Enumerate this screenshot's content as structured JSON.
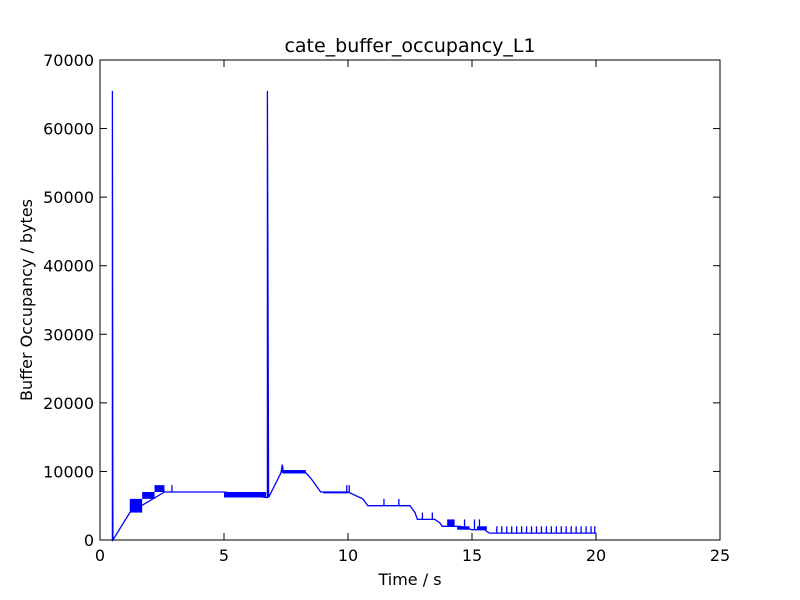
{
  "chart_data": {
    "type": "line",
    "title": "cate_buffer_occupancy_L1",
    "xlabel": "Time / s",
    "ylabel": "Buffer Occupancy / bytes",
    "xlim": [
      0,
      25
    ],
    "ylim": [
      0,
      70000
    ],
    "xticks": [
      0,
      5,
      10,
      15,
      20,
      25
    ],
    "yticks": [
      0,
      10000,
      20000,
      30000,
      40000,
      50000,
      60000,
      70000
    ],
    "grid": false,
    "legend": "none",
    "color": "#0000ff",
    "series": [
      {
        "x": [
          0.45,
          0.5,
          0.5,
          0.52,
          1.2,
          2.6,
          3.0,
          5.0,
          6.7,
          6.75,
          6.75,
          6.8,
          7.3,
          7.35,
          7.4,
          8.3,
          8.5,
          8.7,
          8.9,
          9.0,
          10.0,
          10.6,
          10.8,
          11.0,
          11.5,
          12.0,
          12.5,
          12.7,
          12.8,
          12.9,
          13.0,
          13.5,
          13.7,
          13.8,
          14.5,
          15.0,
          15.5,
          15.7,
          16.0,
          17.0,
          18.0,
          19.0,
          20.0
        ],
        "y": [
          0,
          0,
          65500,
          0,
          4000,
          7000,
          7000,
          7000,
          6200,
          6200,
          65500,
          6200,
          9800,
          11000,
          9800,
          9800,
          9000,
          8000,
          7000,
          7000,
          7000,
          6000,
          5000,
          5000,
          5000,
          5000,
          5000,
          4000,
          3000,
          3000,
          3000,
          3000,
          2500,
          2000,
          2000,
          1500,
          1500,
          1000,
          1000,
          1000,
          1000,
          1000,
          1000
        ]
      }
    ],
    "bands": [
      {
        "x": [
          1.2,
          1.7
        ],
        "y": [
          4000,
          6000
        ]
      },
      {
        "x": [
          1.7,
          2.2
        ],
        "y": [
          6000,
          7000
        ]
      },
      {
        "x": [
          2.2,
          2.6
        ],
        "y": [
          7000,
          8000
        ]
      },
      {
        "x": [
          5.0,
          6.7
        ],
        "y": [
          6200,
          7000
        ]
      },
      {
        "x": [
          7.3,
          8.3
        ],
        "y": [
          9800,
          10200
        ]
      },
      {
        "x": [
          9.0,
          10.0
        ],
        "y": [
          6800,
          7000
        ]
      },
      {
        "x": [
          14.0,
          14.3
        ],
        "y": [
          2000,
          3000
        ]
      },
      {
        "x": [
          14.4,
          14.9
        ],
        "y": [
          1500,
          2000
        ]
      },
      {
        "x": [
          15.2,
          15.6
        ],
        "y": [
          1500,
          2000
        ]
      }
    ],
    "spikes": [
      {
        "x": 2.9,
        "y0": 7000,
        "y1": 8000
      },
      {
        "x": 9.95,
        "y0": 7000,
        "y1": 8000
      },
      {
        "x": 10.05,
        "y0": 7000,
        "y1": 8000
      },
      {
        "x": 11.45,
        "y0": 5000,
        "y1": 6000
      },
      {
        "x": 12.05,
        "y0": 5000,
        "y1": 6000
      },
      {
        "x": 13.0,
        "y0": 3000,
        "y1": 4000
      },
      {
        "x": 13.4,
        "y0": 3000,
        "y1": 4000
      },
      {
        "x": 14.7,
        "y0": 2000,
        "y1": 3000
      },
      {
        "x": 15.1,
        "y0": 1500,
        "y1": 3000
      },
      {
        "x": 15.3,
        "y0": 1500,
        "y1": 3000
      },
      {
        "x": 16.0,
        "y0": 1000,
        "y1": 2000
      },
      {
        "x": 16.2,
        "y0": 1000,
        "y1": 2000
      },
      {
        "x": 16.4,
        "y0": 1000,
        "y1": 2000
      },
      {
        "x": 16.6,
        "y0": 1000,
        "y1": 2000
      },
      {
        "x": 16.8,
        "y0": 1000,
        "y1": 2000
      },
      {
        "x": 17.0,
        "y0": 1000,
        "y1": 2000
      },
      {
        "x": 17.2,
        "y0": 1000,
        "y1": 2000
      },
      {
        "x": 17.4,
        "y0": 1000,
        "y1": 2000
      },
      {
        "x": 17.6,
        "y0": 1000,
        "y1": 2000
      },
      {
        "x": 17.8,
        "y0": 1000,
        "y1": 2000
      },
      {
        "x": 18.0,
        "y0": 1000,
        "y1": 2000
      },
      {
        "x": 18.2,
        "y0": 1000,
        "y1": 2000
      },
      {
        "x": 18.4,
        "y0": 1000,
        "y1": 2000
      },
      {
        "x": 18.6,
        "y0": 1000,
        "y1": 2000
      },
      {
        "x": 18.8,
        "y0": 1000,
        "y1": 2000
      },
      {
        "x": 19.0,
        "y0": 1000,
        "y1": 2000
      },
      {
        "x": 19.2,
        "y0": 1000,
        "y1": 2000
      },
      {
        "x": 19.4,
        "y0": 1000,
        "y1": 2000
      },
      {
        "x": 19.6,
        "y0": 1000,
        "y1": 2000
      },
      {
        "x": 19.8,
        "y0": 1000,
        "y1": 2000
      },
      {
        "x": 19.95,
        "y0": 1000,
        "y1": 2000
      }
    ]
  }
}
